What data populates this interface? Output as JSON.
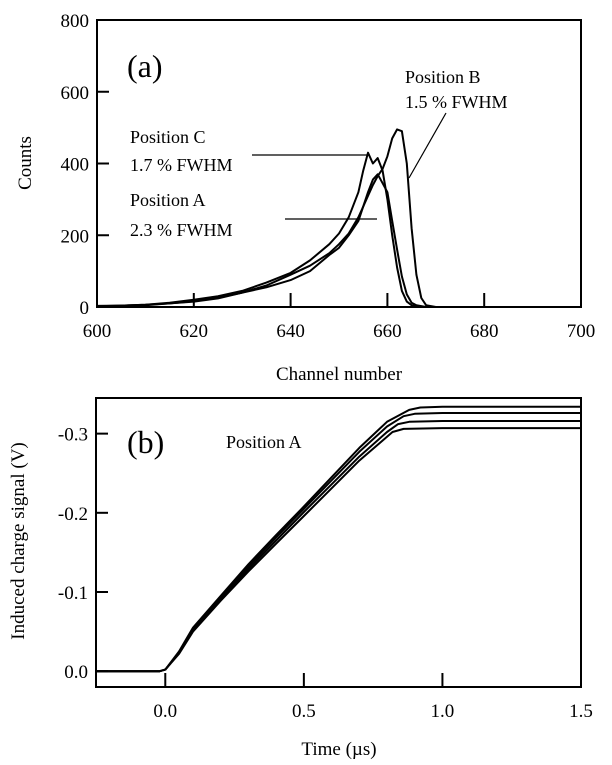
{
  "chart_data": [
    {
      "type": "line",
      "panel_label": "(a)",
      "xlabel": "Channel number",
      "ylabel": "Counts",
      "xlim": [
        600,
        700
      ],
      "ylim": [
        0,
        800
      ],
      "xticks": [
        600,
        620,
        640,
        660,
        680,
        700
      ],
      "yticks": [
        0,
        200,
        400,
        600,
        800
      ],
      "grid": false,
      "annotations": [
        {
          "line1": "Position B",
          "line2": "1.5 % FWHM",
          "target": [
            665,
            360
          ]
        },
        {
          "line1": "Position C",
          "line2": "1.7 % FWHM",
          "target": [
            656,
            420
          ]
        },
        {
          "line1": "Position A",
          "line2": "2.3 % FWHM",
          "target": [
            658,
            330
          ]
        }
      ],
      "series": [
        {
          "x": [
            600,
            605,
            610,
            615,
            620,
            625,
            630,
            635,
            640,
            644,
            648,
            650,
            652,
            654,
            655,
            656,
            657,
            658,
            659,
            660,
            661,
            662,
            663,
            664,
            665,
            666,
            667,
            668,
            670,
            700
          ],
          "y": [
            2,
            3,
            5,
            10,
            15,
            24,
            40,
            60,
            90,
            115,
            150,
            175,
            205,
            250,
            280,
            310,
            340,
            365,
            385,
            420,
            470,
            495,
            490,
            400,
            220,
            90,
            25,
            5,
            0,
            0
          ]
        },
        {
          "x": [
            600,
            605,
            610,
            615,
            620,
            625,
            630,
            635,
            640,
            644,
            648,
            650,
            652,
            654,
            655,
            656,
            657,
            658,
            659,
            660,
            661,
            662,
            663,
            664,
            665,
            667,
            700
          ],
          "y": [
            3,
            4,
            6,
            12,
            20,
            30,
            45,
            68,
            95,
            130,
            175,
            205,
            250,
            320,
            380,
            430,
            400,
            415,
            380,
            300,
            200,
            110,
            45,
            15,
            5,
            0,
            0
          ]
        },
        {
          "x": [
            600,
            605,
            610,
            615,
            620,
            625,
            630,
            635,
            640,
            644,
            648,
            650,
            652,
            654,
            655,
            656,
            657,
            658,
            659,
            660,
            661,
            662,
            663,
            664,
            665,
            666,
            668,
            700
          ],
          "y": [
            2,
            4,
            6,
            10,
            16,
            26,
            40,
            55,
            75,
            100,
            145,
            165,
            200,
            240,
            280,
            320,
            355,
            370,
            345,
            320,
            240,
            160,
            85,
            35,
            12,
            5,
            0,
            0
          ]
        }
      ]
    },
    {
      "type": "line",
      "panel_label": "(b)",
      "xlabel": "Time (µs)",
      "ylabel": "Induced charge signal (V)",
      "xlim": [
        -0.25,
        1.5
      ],
      "ylim": [
        0.02,
        -0.345
      ],
      "xticks": [
        0.0,
        0.5,
        1.0,
        1.5
      ],
      "xtick_labels": [
        "0.0",
        "0.5",
        "1.0",
        "1.5"
      ],
      "yticks": [
        0.0,
        -0.1,
        -0.2,
        -0.3
      ],
      "ytick_labels": [
        "0.0",
        "-0.1",
        "-0.2",
        "-0.3"
      ],
      "grid": false,
      "annotations": [
        {
          "text": "Position A"
        }
      ],
      "series": [
        {
          "x": [
            -0.25,
            -0.02,
            0.0,
            0.05,
            0.1,
            0.2,
            0.3,
            0.4,
            0.5,
            0.6,
            0.7,
            0.8,
            0.88,
            0.92,
            1.0,
            1.5
          ],
          "y": [
            0,
            0,
            -0.002,
            -0.025,
            -0.055,
            -0.095,
            -0.135,
            -0.172,
            -0.208,
            -0.245,
            -0.282,
            -0.315,
            -0.33,
            -0.333,
            -0.334,
            -0.334
          ]
        },
        {
          "x": [
            -0.25,
            -0.02,
            0.0,
            0.05,
            0.1,
            0.2,
            0.3,
            0.4,
            0.5,
            0.6,
            0.7,
            0.8,
            0.86,
            0.9,
            1.0,
            1.5
          ],
          "y": [
            0,
            0,
            -0.002,
            -0.024,
            -0.053,
            -0.093,
            -0.132,
            -0.169,
            -0.205,
            -0.241,
            -0.277,
            -0.309,
            -0.322,
            -0.325,
            -0.326,
            -0.326
          ]
        },
        {
          "x": [
            -0.25,
            -0.02,
            0.0,
            0.05,
            0.1,
            0.2,
            0.3,
            0.4,
            0.5,
            0.6,
            0.7,
            0.8,
            0.84,
            0.88,
            1.0,
            1.5
          ],
          "y": [
            0,
            0,
            -0.002,
            -0.023,
            -0.052,
            -0.091,
            -0.129,
            -0.165,
            -0.201,
            -0.236,
            -0.271,
            -0.302,
            -0.312,
            -0.315,
            -0.316,
            -0.316
          ]
        },
        {
          "x": [
            -0.25,
            -0.02,
            0.0,
            0.05,
            0.1,
            0.2,
            0.3,
            0.4,
            0.5,
            0.6,
            0.7,
            0.8,
            0.82,
            0.86,
            1.0,
            1.5
          ],
          "y": [
            0,
            0,
            -0.002,
            -0.022,
            -0.05,
            -0.089,
            -0.126,
            -0.161,
            -0.196,
            -0.231,
            -0.266,
            -0.296,
            -0.302,
            -0.306,
            -0.307,
            -0.307
          ]
        }
      ]
    }
  ]
}
